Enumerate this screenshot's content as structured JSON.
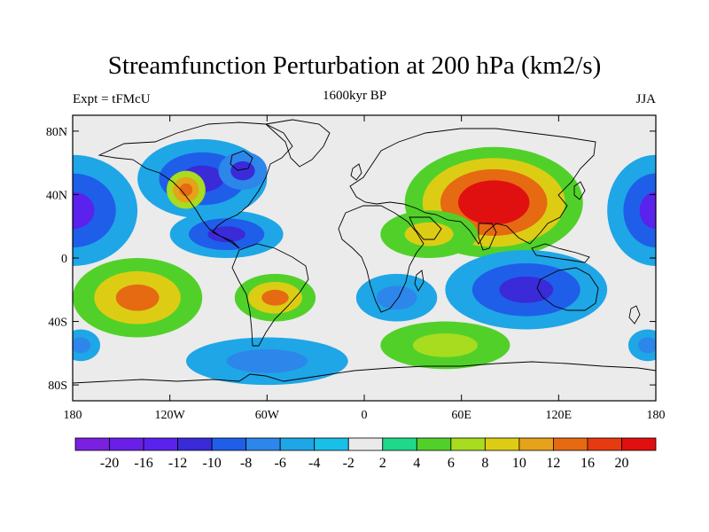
{
  "title": "Streamfunction Perturbation at 200 hPa (km2/s)",
  "subtitle_left": "Expt = tFMcU",
  "subtitle_center": "1600kyr BP",
  "subtitle_right": "JJA",
  "lat_labels": [
    "80N",
    "40N",
    "0",
    "40S",
    "80S"
  ],
  "lon_labels": [
    "180",
    "120W",
    "60W",
    "0",
    "60E",
    "120E",
    "180"
  ],
  "colorbar": {
    "colors": [
      "#7b1fe0",
      "#6a1fe8",
      "#5a22ec",
      "#3a2ad8",
      "#1f5ee8",
      "#2d86ea",
      "#1fa6e6",
      "#18bfe6",
      "#eaeaea",
      "#1fd88a",
      "#52d02a",
      "#a8dc1e",
      "#dccd14",
      "#e6a21a",
      "#e66a12",
      "#e63a10",
      "#e01010"
    ],
    "labels": [
      "-20",
      "-16",
      "-12",
      "-10",
      "-8",
      "-6",
      "-4",
      "-2",
      "2",
      "4",
      "6",
      "8",
      "10",
      "12",
      "16",
      "20"
    ]
  },
  "map_blobs": [
    {
      "lon": -180,
      "lat": 30,
      "rx": 40,
      "ry": 35,
      "levels": [
        2,
        4,
        6
      ],
      "sign": -1
    },
    {
      "lon": 180,
      "lat": 30,
      "rx": 30,
      "ry": 35,
      "levels": [
        2,
        4,
        6
      ],
      "sign": -1
    },
    {
      "lon": -100,
      "lat": 50,
      "rx": 40,
      "ry": 25,
      "levels": [
        2,
        4,
        5
      ],
      "sign": -1
    },
    {
      "lon": -75,
      "lat": 55,
      "rx": 15,
      "ry": 12,
      "levels": [
        3,
        5
      ],
      "sign": -1
    },
    {
      "lon": -85,
      "lat": 15,
      "rx": 35,
      "ry": 15,
      "levels": [
        2,
        4,
        5
      ],
      "sign": -1
    },
    {
      "lon": -110,
      "lat": 43,
      "rx": 12,
      "ry": 12,
      "levels": [
        3,
        5,
        6
      ],
      "sign": 1
    },
    {
      "lon": 80,
      "lat": 35,
      "rx": 55,
      "ry": 35,
      "levels": [
        2,
        4,
        6,
        8,
        9
      ],
      "sign": 1
    },
    {
      "lon": 40,
      "lat": 15,
      "rx": 30,
      "ry": 15,
      "levels": [
        2,
        4
      ],
      "sign": 1
    },
    {
      "lon": -140,
      "lat": -25,
      "rx": 40,
      "ry": 25,
      "levels": [
        2,
        4,
        6
      ],
      "sign": 1
    },
    {
      "lon": -55,
      "lat": -25,
      "rx": 25,
      "ry": 15,
      "levels": [
        2,
        4,
        6
      ],
      "sign": 1
    },
    {
      "lon": 50,
      "lat": -55,
      "rx": 40,
      "ry": 15,
      "levels": [
        2,
        3
      ],
      "sign": 1
    },
    {
      "lon": 100,
      "lat": -20,
      "rx": 50,
      "ry": 25,
      "levels": [
        2,
        4,
        5
      ],
      "sign": -1
    },
    {
      "lon": 20,
      "lat": -25,
      "rx": 25,
      "ry": 15,
      "levels": [
        2,
        3
      ],
      "sign": -1
    },
    {
      "lon": -60,
      "lat": -65,
      "rx": 50,
      "ry": 15,
      "levels": [
        2,
        3
      ],
      "sign": -1
    },
    {
      "lon": -175,
      "lat": -55,
      "rx": 12,
      "ry": 10,
      "levels": [
        2,
        3
      ],
      "sign": -1
    },
    {
      "lon": 175,
      "lat": -55,
      "rx": 12,
      "ry": 10,
      "levels": [
        2,
        3
      ],
      "sign": -1
    }
  ]
}
